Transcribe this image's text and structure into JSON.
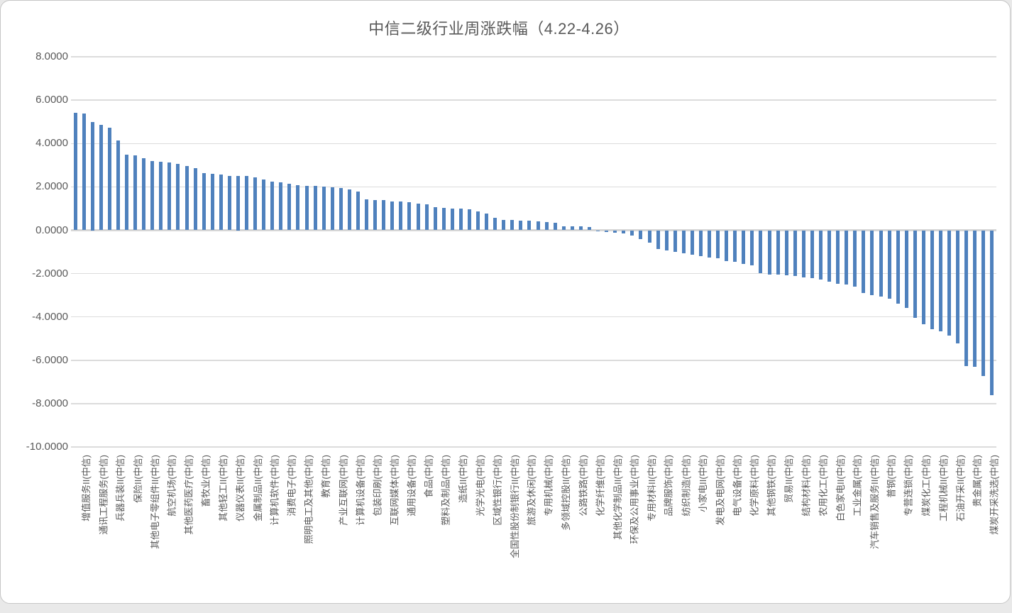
{
  "window": {
    "background_color": "#e9e9e9",
    "card_background_color": "#ffffff",
    "card_border_color": "#c6c6c6"
  },
  "chart_data": {
    "type": "bar",
    "title": "中信二级行业周涨跌幅（4.22-4.26）",
    "xlabel": "",
    "ylabel": "",
    "ylim": [
      -10,
      8
    ],
    "grid": true,
    "legend": "none",
    "bar_color": "#4F81BD",
    "gridline_color": "#dcdcdc",
    "axis_text_color": "#595959",
    "y_ticks": [
      8,
      6,
      4,
      2,
      0,
      -2,
      -4,
      -6,
      -8,
      -10
    ],
    "y_tick_labels": [
      "8.0000",
      "6.0000",
      "4.0000",
      "2.0000",
      "0.0000",
      "-2.0000",
      "-4.0000",
      "-6.0000",
      "-8.0000",
      "-10.0000"
    ],
    "category_label_interval": 2,
    "categories": [
      "增值服务II(中信)",
      "通讯工程服务(中信)",
      "兵器兵装II(中信)",
      "保险II(中信)",
      "其他电子零组件II(中信)",
      "航空机场(中信)",
      "其他医药医疗(中信)",
      "畜牧业(中信)",
      "其他轻工II(中信)",
      "仪器仪表II(中信)",
      "金属制品II(中信)",
      "计算机软件(中信)",
      "消费电子(中信)",
      "照明电工及其他(中信)",
      "教育(中信)",
      "产业互联网(中信)",
      "计算机设备(中信)",
      "包装印刷(中信)",
      "互联网媒体(中信)",
      "通用设备(中信)",
      "食品(中信)",
      "塑料及制品(中信)",
      "造纸II(中信)",
      "光学光电(中信)",
      "区域性银行(中信)",
      "全国性股份制银行II(中信)",
      "旅游及休闲(中信)",
      "专用机械(中信)",
      "多领域控股II(中信)",
      "公路铁路(中信)",
      "化学纤维(中信)",
      "其他化学制品II(中信)",
      "环保及公用事业(中信)",
      "专用材料II(中信)",
      "品牌服饰(中信)",
      "纺织制造(中信)",
      "小家电II(中信)",
      "发电及电网(中信)",
      "电气设备(中信)",
      "化学原料(中信)",
      "其他钢铁(中信)",
      "贸易II(中信)",
      "结构材料(中信)",
      "农用化工(中信)",
      "白色家电II(中信)",
      "工业金属(中信)",
      "汽车销售及服务II(中信)",
      "普钢(中信)",
      "专营连锁(中信)",
      "煤炭化工(中信)",
      "工程机械II(中信)",
      "石油开采II(中信)",
      "贵金属(中信)",
      "煤炭开采洗选(中信)"
    ],
    "values": [
      5.41,
      5.38,
      5.0,
      4.85,
      4.73,
      4.15,
      3.5,
      3.46,
      3.33,
      3.19,
      3.15,
      3.12,
      3.06,
      2.97,
      2.86,
      2.62,
      2.59,
      2.57,
      2.51,
      2.5,
      2.49,
      2.44,
      2.33,
      2.24,
      2.21,
      2.13,
      2.08,
      2.06,
      2.04,
      2.01,
      1.97,
      1.96,
      1.88,
      1.79,
      1.42,
      1.4,
      1.39,
      1.34,
      1.33,
      1.29,
      1.23,
      1.2,
      1.07,
      1.02,
      1.0,
      0.99,
      0.97,
      0.88,
      0.77,
      0.57,
      0.47,
      0.46,
      0.45,
      0.44,
      0.42,
      0.37,
      0.35,
      0.19,
      0.17,
      0.17,
      0.14,
      -0.03,
      -0.08,
      -0.1,
      -0.15,
      -0.24,
      -0.41,
      -0.56,
      -0.87,
      -0.92,
      -1.0,
      -1.06,
      -1.14,
      -1.19,
      -1.25,
      -1.3,
      -1.41,
      -1.47,
      -1.54,
      -1.61,
      -1.98,
      -2.05,
      -2.06,
      -2.07,
      -2.11,
      -2.17,
      -2.21,
      -2.27,
      -2.38,
      -2.48,
      -2.52,
      -2.61,
      -2.91,
      -3.0,
      -3.07,
      -3.16,
      -3.4,
      -3.57,
      -4.03,
      -4.33,
      -4.58,
      -4.65,
      -4.85,
      -5.23,
      -6.27,
      -6.3,
      -6.74,
      -7.6
    ]
  }
}
